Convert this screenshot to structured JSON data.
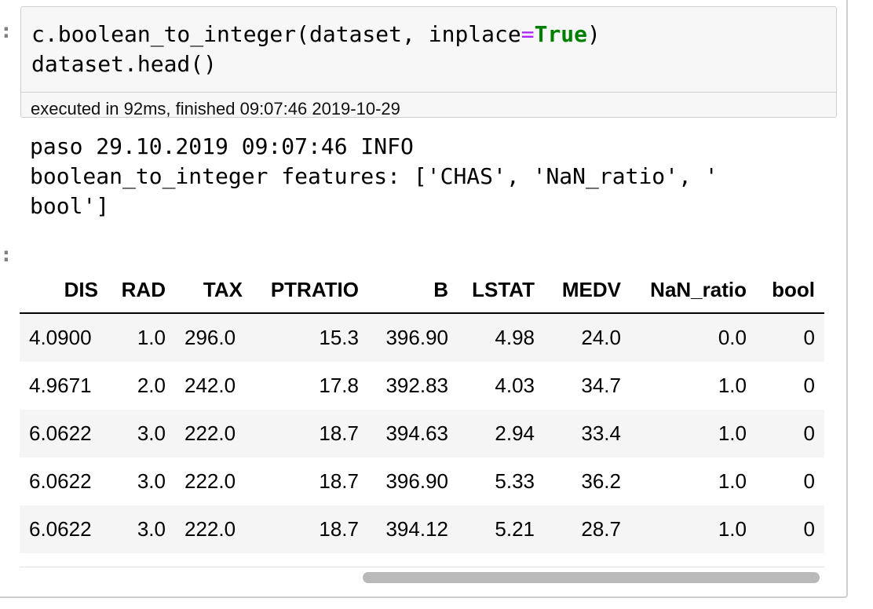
{
  "input_prompt": ":",
  "output_prompt": ":",
  "code": {
    "line1_pre": "c.boolean_to_integer(dataset, inplace",
    "line1_op": "=",
    "line1_kw": "True",
    "line1_post": ")",
    "line2": "dataset.head()"
  },
  "execution_info": "executed in 92ms, finished 09:07:46 2019-10-29",
  "log": {
    "line1": "paso 29.10.2019 09:07:46 INFO",
    "line2": "boolean_to_integer features: ['CHAS', 'NaN_ratio', '",
    "line3": "bool']"
  },
  "table": {
    "columns": [
      "DIS",
      "RAD",
      "TAX",
      "PTRATIO",
      "B",
      "LSTAT",
      "MEDV",
      "NaN_ratio",
      "bool"
    ],
    "rows": [
      [
        "4.0900",
        "1.0",
        "296.0",
        "15.3",
        "396.90",
        "4.98",
        "24.0",
        "0.0",
        "0"
      ],
      [
        "4.9671",
        "2.0",
        "242.0",
        "17.8",
        "392.83",
        "4.03",
        "34.7",
        "1.0",
        "0"
      ],
      [
        "6.0622",
        "3.0",
        "222.0",
        "18.7",
        "394.63",
        "2.94",
        "33.4",
        "1.0",
        "0"
      ],
      [
        "6.0622",
        "3.0",
        "222.0",
        "18.7",
        "396.90",
        "5.33",
        "36.2",
        "1.0",
        "0"
      ],
      [
        "6.0622",
        "3.0",
        "222.0",
        "18.7",
        "394.12",
        "5.21",
        "28.7",
        "1.0",
        "0"
      ]
    ]
  },
  "colors": {
    "code_background": "#f7f7f7",
    "border": "#cfcfcf",
    "operator": "#aa22ff",
    "keyword": "#008000",
    "row_stripe": "#f5f5f5",
    "scrollbar_thumb": "#b9b9b9"
  }
}
